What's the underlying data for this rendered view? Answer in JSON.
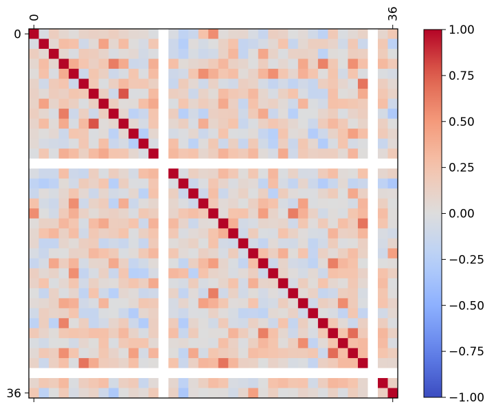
{
  "chart_data": {
    "type": "heatmap",
    "title": "",
    "xlabel": "",
    "ylabel": "",
    "size": 37,
    "x_tick_labels": [
      "0",
      "36"
    ],
    "y_tick_labels": [
      "0",
      "36"
    ],
    "colorbar": {
      "colormap": "coolwarm",
      "range": [
        -1.0,
        1.0
      ],
      "tick_labels": [
        "1.00",
        "0.75",
        "0.50",
        "0.25",
        "0.00",
        "−0.25",
        "−0.50",
        "−0.75",
        "−1.00"
      ],
      "tick_values": [
        1.0,
        0.75,
        0.5,
        0.25,
        0.0,
        -0.25,
        -0.5,
        -0.75,
        -1.0
      ]
    },
    "nan_indices": [
      13,
      34
    ],
    "value_range": [
      -1.0,
      1.0
    ],
    "diagonal_value": 1.0
  }
}
